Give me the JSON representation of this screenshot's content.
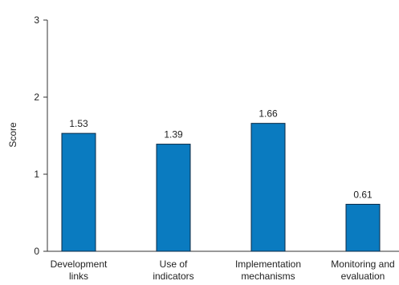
{
  "chart_data": {
    "type": "bar",
    "title": "",
    "xlabel": "",
    "ylabel": "Score",
    "ylim": [
      0,
      3
    ],
    "yticks": [
      0,
      1,
      2,
      3
    ],
    "grid": false,
    "categories": [
      [
        "Development",
        "links"
      ],
      [
        "Use of",
        "indicators"
      ],
      [
        "Implementation",
        "mechanisms"
      ],
      [
        "Monitoring and",
        "evaluation"
      ]
    ],
    "values": [
      1.53,
      1.39,
      1.66,
      0.61
    ],
    "data_labels": [
      "1.53",
      "1.39",
      "1.66",
      "0.61"
    ],
    "colors": {
      "bar_fill": "#0a7bc0",
      "bar_stroke": "#0b2a45",
      "axis": "#333333"
    }
  }
}
